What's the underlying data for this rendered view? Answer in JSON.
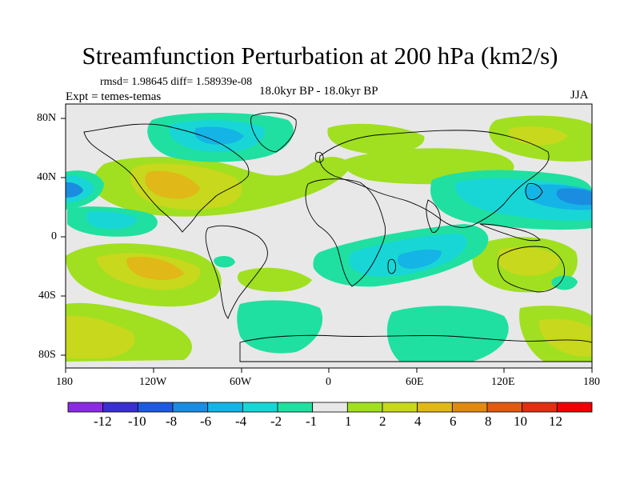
{
  "title": "Streamfunction Perturbation at 200 hPa (km2/s)",
  "stats": "rmsd= 1.98645 diff= 1.58939e-08",
  "experiment": "Expt = temes-temas",
  "period": "18.0kyr BP - 18.0kyr BP",
  "season": "JJA",
  "lat_labels": [
    "80N",
    "40N",
    "0",
    "40S",
    "80S"
  ],
  "lon_labels": [
    "180",
    "120W",
    "60W",
    "0",
    "60E",
    "120E",
    "180"
  ],
  "colorbar": {
    "labels": [
      "-12",
      "-10",
      "-8",
      "-6",
      "-4",
      "-2",
      "-1",
      "1",
      "2",
      "4",
      "6",
      "8",
      "10",
      "12"
    ],
    "colors": [
      "#8a2be2",
      "#3a2fd0",
      "#1e5adf",
      "#1a8de0",
      "#14b4e6",
      "#18d6d6",
      "#1fe0a0",
      "#e8e8e8",
      "#a0e020",
      "#c8d81c",
      "#e0b818",
      "#e08a14",
      "#e05a12",
      "#e03010",
      "#f00000"
    ]
  },
  "map_colors": {
    "background": "#e8e8e8",
    "neg_1": "#1fe0a0",
    "neg_2": "#18d6d6",
    "neg_4": "#14b4e6",
    "neg_6": "#1a8de0",
    "pos_1": "#a0e020",
    "pos_2": "#c8d81c",
    "pos_4": "#e0b818",
    "pos_6": "#e08a14",
    "coast": "#000000"
  }
}
